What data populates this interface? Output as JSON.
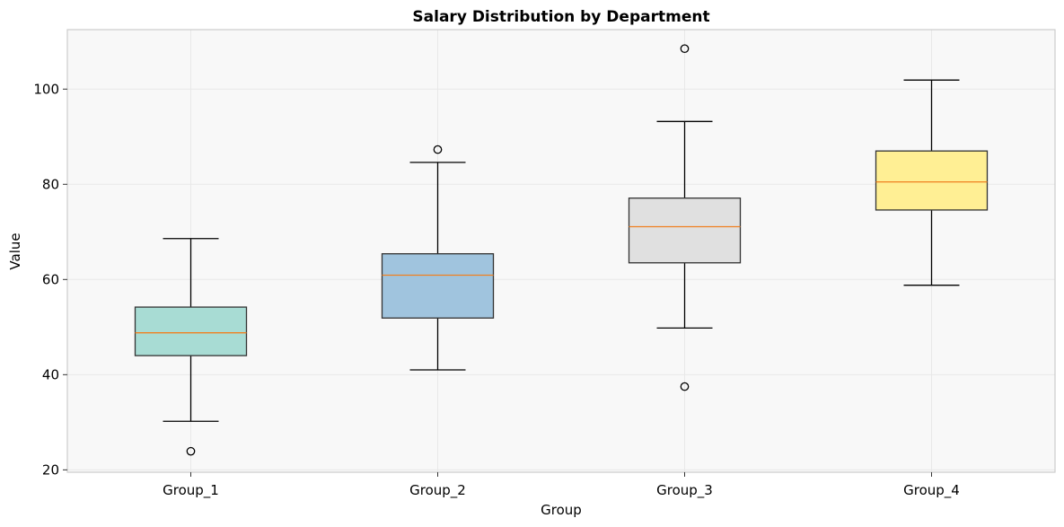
{
  "chart_data": {
    "type": "boxplot",
    "title": "Salary Distribution by Department",
    "xlabel": "Group",
    "ylabel": "Value",
    "ylim": [
      19.5,
      112.5
    ],
    "yticks": [
      20,
      40,
      60,
      80,
      100
    ],
    "ytick_labels": [
      "20",
      "40",
      "60",
      "80",
      "100"
    ],
    "grid": true,
    "categories": [
      "Group_1",
      "Group_2",
      "Group_3",
      "Group_4"
    ],
    "boxes": [
      {
        "name": "Group_1",
        "whisker_low": 30.2,
        "q1": 44.0,
        "median": 48.8,
        "q3": 54.2,
        "whisker_high": 68.6,
        "outliers": [
          23.9
        ],
        "color": "#a8dcd4"
      },
      {
        "name": "Group_2",
        "whisker_low": 41.0,
        "q1": 51.9,
        "median": 60.9,
        "q3": 65.4,
        "whisker_high": 84.6,
        "outliers": [
          87.3
        ],
        "color": "#a0c4de"
      },
      {
        "name": "Group_3",
        "whisker_low": 49.8,
        "q1": 63.5,
        "median": 71.1,
        "q3": 77.1,
        "whisker_high": 93.2,
        "outliers": [
          37.5,
          108.5
        ],
        "color": "#e0e0e0"
      },
      {
        "name": "Group_4",
        "whisker_low": 58.8,
        "q1": 74.6,
        "median": 80.5,
        "q3": 87.0,
        "whisker_high": 101.9,
        "outliers": [],
        "color": "#ffef94"
      }
    ],
    "colors": {
      "plot_background": "#f8f8f8",
      "median_line": "#f08020",
      "box_edge": "#333333",
      "grid": "#e8e8e8",
      "frame": "#cccccc"
    }
  }
}
